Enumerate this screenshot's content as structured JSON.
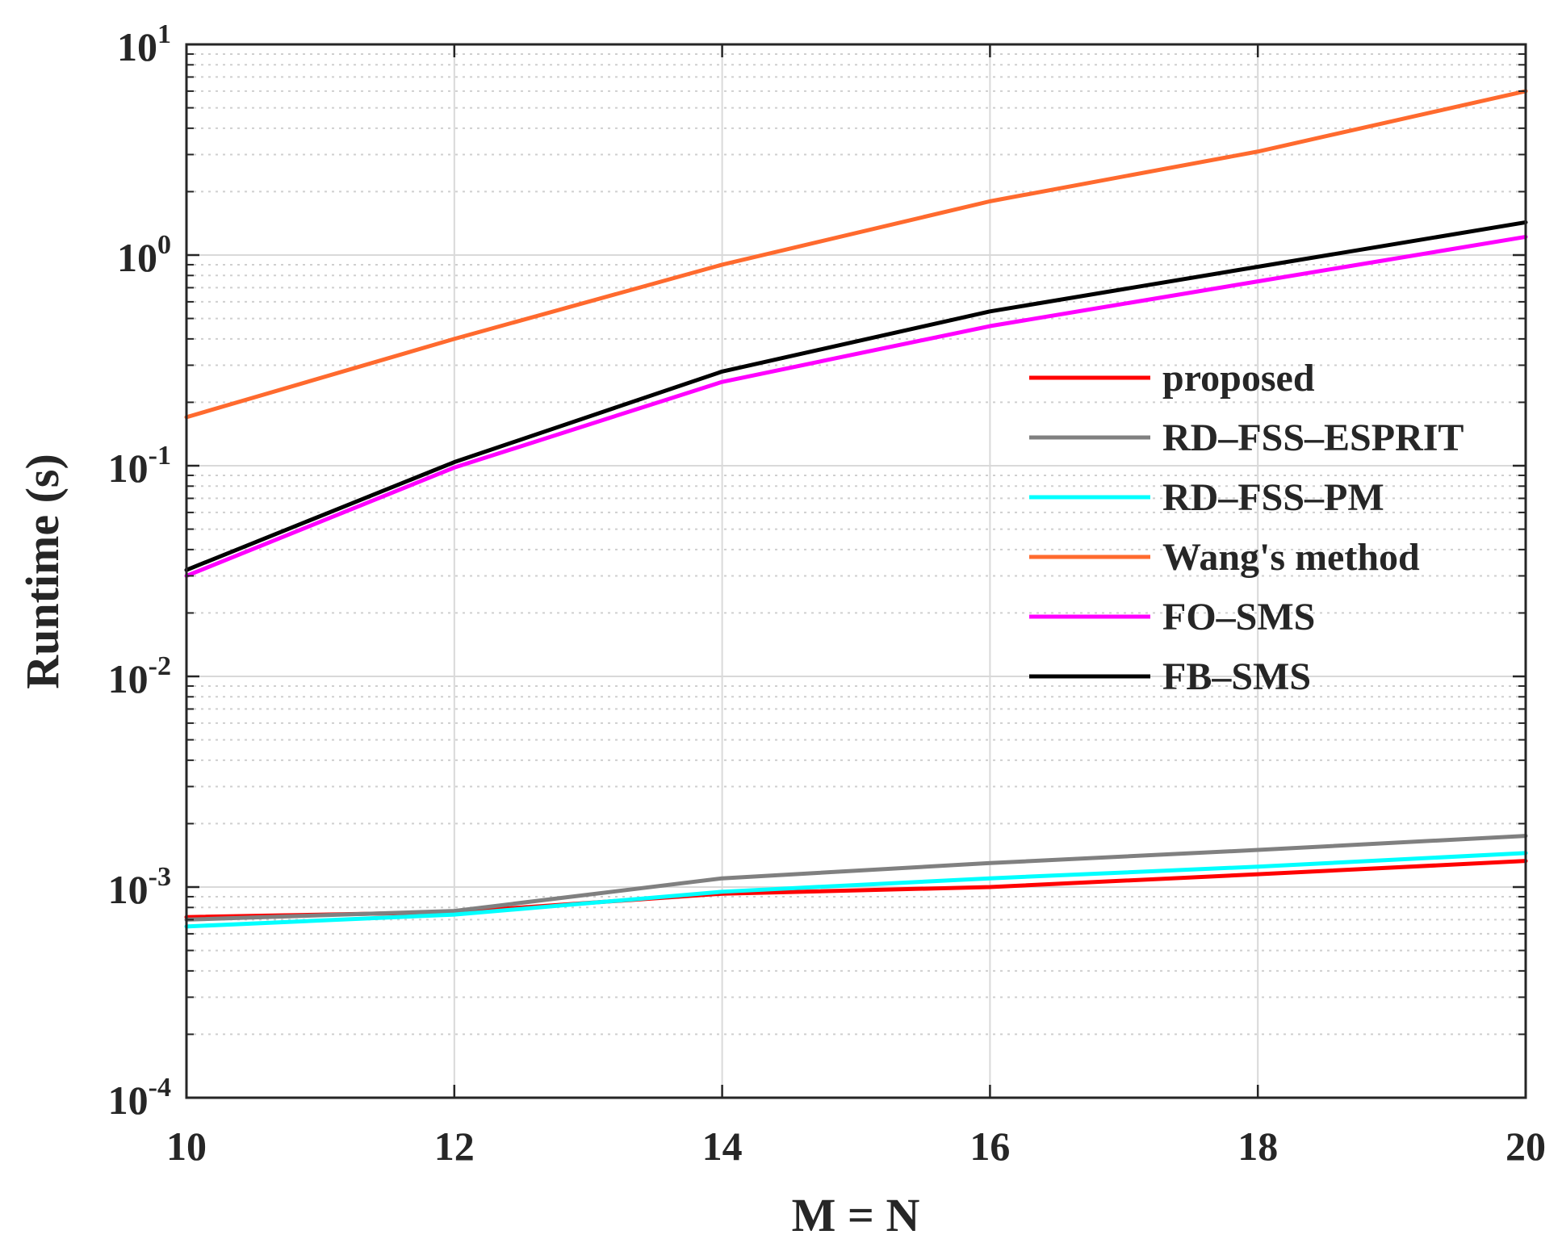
{
  "chart_data": {
    "type": "line",
    "title": "",
    "xlabel": "M = N",
    "ylabel": "Runtime (s)",
    "x": [
      10,
      12,
      14,
      16,
      18,
      20
    ],
    "xlim": [
      10,
      20
    ],
    "ylim": [
      0.0001,
      10
    ],
    "y_scale": "log",
    "grid": true,
    "legend_position": "right-middle",
    "x_ticks": [
      "10",
      "12",
      "14",
      "16",
      "18",
      "20"
    ],
    "y_ticks": [
      {
        "base": "10",
        "exp": "-4",
        "value": 0.0001
      },
      {
        "base": "10",
        "exp": "-3",
        "value": 0.001
      },
      {
        "base": "10",
        "exp": "-2",
        "value": 0.01
      },
      {
        "base": "10",
        "exp": "-1",
        "value": 0.1
      },
      {
        "base": "10",
        "exp": "0",
        "value": 1
      },
      {
        "base": "10",
        "exp": "1",
        "value": 10
      }
    ],
    "series": [
      {
        "name": "proposed",
        "color": "#ff0000",
        "values": [
          0.00072,
          0.00076,
          0.00093,
          0.001,
          0.00115,
          0.00133
        ]
      },
      {
        "name": "RD–FSS–ESPRIT",
        "color": "#808080",
        "values": [
          0.0007,
          0.00077,
          0.0011,
          0.0013,
          0.0015,
          0.00175
        ]
      },
      {
        "name": "RD–FSS–PM",
        "color": "#00ffff",
        "values": [
          0.00065,
          0.00074,
          0.00095,
          0.0011,
          0.00125,
          0.00145
        ]
      },
      {
        "name": "Wang's method",
        "color": "#ff6a2e",
        "values": [
          0.17,
          0.4,
          0.9,
          1.8,
          3.1,
          6.0
        ]
      },
      {
        "name": "FO–SMS",
        "color": "#ff00ff",
        "values": [
          0.03,
          0.098,
          0.25,
          0.46,
          0.75,
          1.22
        ]
      },
      {
        "name": "FB–SMS",
        "color": "#000000",
        "values": [
          0.032,
          0.104,
          0.28,
          0.54,
          0.88,
          1.43
        ]
      }
    ]
  }
}
